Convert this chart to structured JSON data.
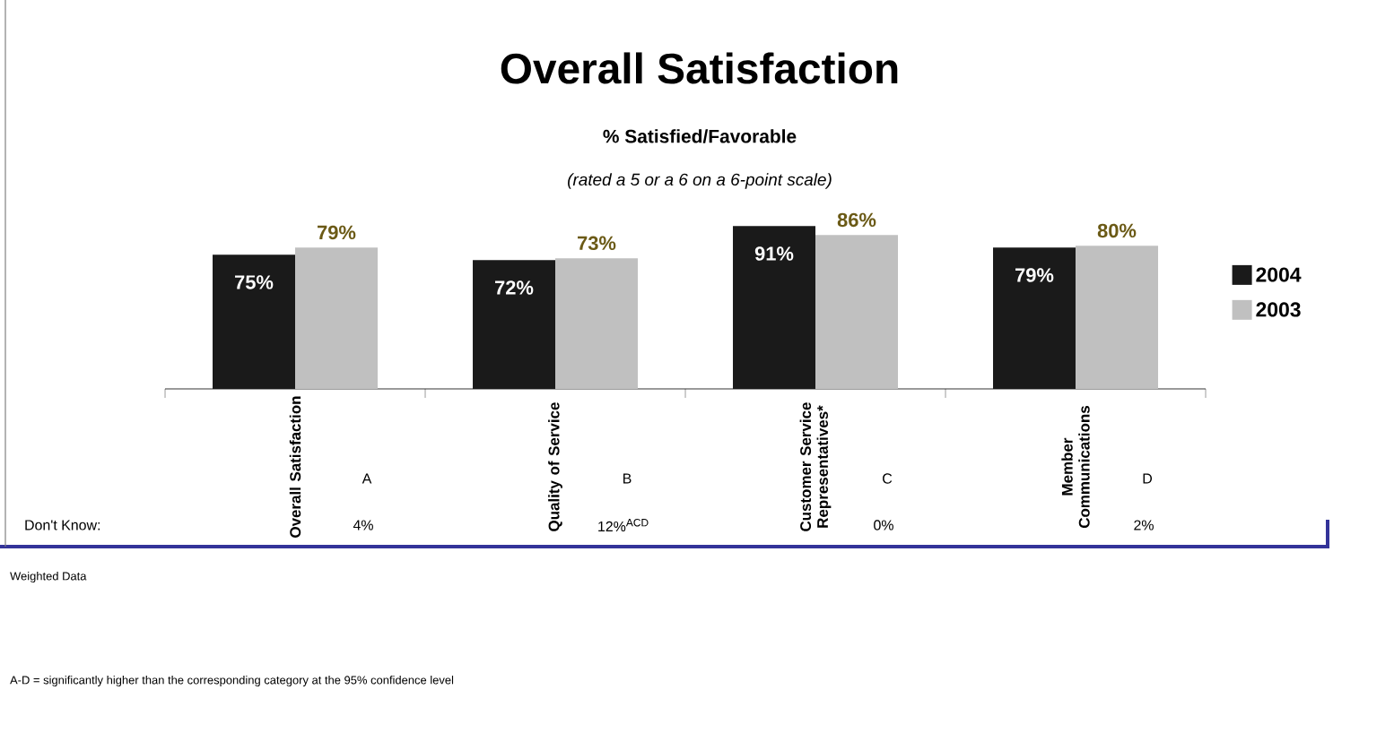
{
  "chart_data": {
    "type": "bar",
    "title": "Overall Satisfaction",
    "subtitle": "% Satisfied/Favorable",
    "categories": [
      "Overall Satisfaction",
      "Quality of Service",
      "Customer Service Representatives*",
      "Member Communications"
    ],
    "tick_labels": "x",
    "legend": "right",
    "series": [
      {
        "name": "2004",
        "color": "#1a1a1a",
        "values": [
          75,
          72,
          91,
          79
        ],
        "value_labels": [
          "75%",
          "72%",
          "91%",
          "79%"
        ]
      },
      {
        "name": "2003",
        "color": "#c0c0c0",
        "values": [
          79,
          73,
          86,
          80
        ],
        "value_labels": [
          "79%",
          "73%",
          "86%",
          "80%"
        ]
      }
    ],
    "annotations": [
      "(rated a 5 or a 6 on a 6-point scale)",
      "A",
      "B",
      "C",
      "D",
      "Don't Know:",
      "4%",
      "12%$^{ACD}$",
      "0%",
      "2%",
      "Weighted Data",
      "A-D = significantly higher than the corresponding category at the 95% confidence level"
    ]
  }
}
